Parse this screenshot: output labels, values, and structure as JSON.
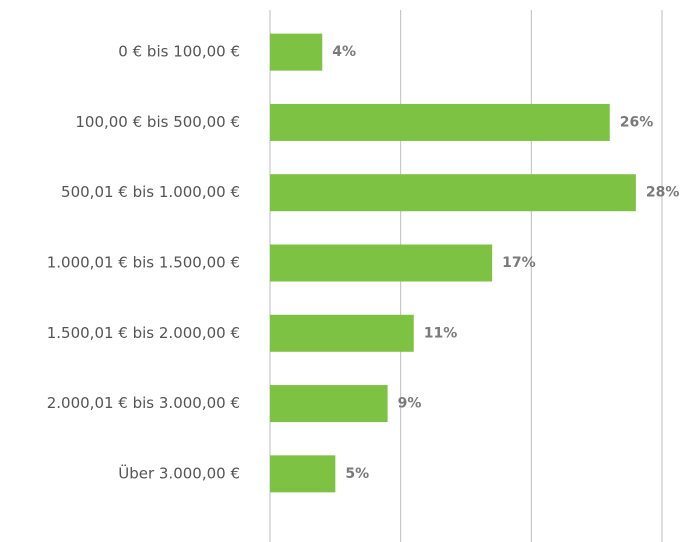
{
  "chart_data": {
    "type": "hbar",
    "categories": [
      "0 € bis 100,00 €",
      "100,00 € bis 500,00 €",
      "500,01 € bis 1.000,00 €",
      "1.000,01 € bis 1.500,00 €",
      "1.500,01 € bis 2.000,00 €",
      "2.000,01 € bis 3.000,00 €",
      "Über 3.000,00 €"
    ],
    "values": [
      4,
      26,
      28,
      17,
      11,
      9,
      5
    ],
    "value_labels": [
      "4%",
      "26%",
      "28%",
      "17%",
      "11%",
      "9%",
      "5%"
    ],
    "color": "#7dc242",
    "xlim": [
      0,
      30
    ],
    "xticks": [
      0,
      10,
      20,
      30
    ],
    "grid": true
  }
}
